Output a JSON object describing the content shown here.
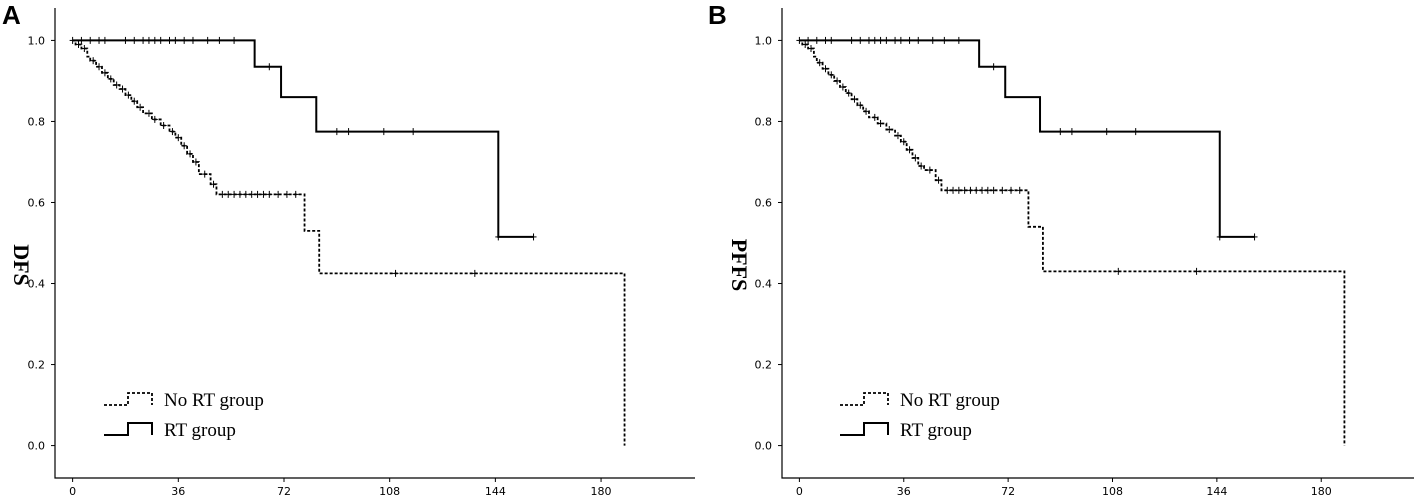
{
  "chart_data": [
    {
      "type": "line",
      "panel_label": "A",
      "ylabel": "DFS",
      "xlabel": "",
      "xlim": [
        -6,
        212
      ],
      "ylim": [
        -0.08,
        1.08
      ],
      "xticks": [
        0,
        36,
        72,
        108,
        144,
        180
      ],
      "yticks": [
        0.0,
        0.2,
        0.4,
        0.6,
        0.8,
        1.0
      ],
      "xtick_labels": [
        "0",
        "36",
        "72",
        "108",
        "144",
        "180"
      ],
      "ytick_labels": [
        "0.0",
        "0.2",
        "0.4",
        "0.6",
        "0.8",
        "1.0"
      ],
      "grid": false,
      "legend_position": "bottom-left",
      "series": [
        {
          "name": "No RT group",
          "style": "dashed",
          "steps": [
            [
              0,
              1.0
            ],
            [
              1,
              0.99
            ],
            [
              3,
              0.98
            ],
            [
              5,
              0.96
            ],
            [
              6,
              0.95
            ],
            [
              8,
              0.935
            ],
            [
              10,
              0.92
            ],
            [
              12,
              0.905
            ],
            [
              14,
              0.89
            ],
            [
              16,
              0.88
            ],
            [
              18,
              0.865
            ],
            [
              20,
              0.85
            ],
            [
              22,
              0.835
            ],
            [
              24,
              0.82
            ],
            [
              27,
              0.805
            ],
            [
              30,
              0.79
            ],
            [
              33,
              0.775
            ],
            [
              35,
              0.76
            ],
            [
              37,
              0.74
            ],
            [
              39,
              0.72
            ],
            [
              41,
              0.7
            ],
            [
              43,
              0.67
            ],
            [
              47,
              0.645
            ],
            [
              49,
              0.62
            ],
            [
              79,
              0.53
            ],
            [
              84,
              0.425
            ],
            [
              188,
              0.0
            ]
          ],
          "end_x": 188,
          "censored": [
            [
              2,
              0.99
            ],
            [
              4,
              0.98
            ],
            [
              7,
              0.95
            ],
            [
              9,
              0.935
            ],
            [
              11,
              0.92
            ],
            [
              13,
              0.905
            ],
            [
              15,
              0.89
            ],
            [
              17,
              0.88
            ],
            [
              19,
              0.865
            ],
            [
              21,
              0.85
            ],
            [
              23,
              0.835
            ],
            [
              26,
              0.82
            ],
            [
              28,
              0.805
            ],
            [
              31,
              0.79
            ],
            [
              34,
              0.775
            ],
            [
              36,
              0.76
            ],
            [
              38,
              0.74
            ],
            [
              40,
              0.72
            ],
            [
              42,
              0.7
            ],
            [
              45,
              0.67
            ],
            [
              48,
              0.645
            ],
            [
              51,
              0.62
            ],
            [
              53,
              0.62
            ],
            [
              55,
              0.62
            ],
            [
              57,
              0.62
            ],
            [
              59,
              0.62
            ],
            [
              61,
              0.62
            ],
            [
              63,
              0.62
            ],
            [
              65,
              0.62
            ],
            [
              67,
              0.62
            ],
            [
              70,
              0.62
            ],
            [
              73,
              0.62
            ],
            [
              76,
              0.62
            ],
            [
              110,
              0.425
            ],
            [
              137,
              0.425
            ]
          ]
        },
        {
          "name": "RT group",
          "style": "solid",
          "steps": [
            [
              0,
              1.0
            ],
            [
              62,
              0.935
            ],
            [
              71,
              0.86
            ],
            [
              83,
              0.775
            ],
            [
              145,
              0.515
            ]
          ],
          "end_x": 157,
          "censored": [
            [
              0,
              1.0
            ],
            [
              3,
              1.0
            ],
            [
              6,
              1.0
            ],
            [
              9,
              1.0
            ],
            [
              11,
              1.0
            ],
            [
              18,
              1.0
            ],
            [
              21,
              1.0
            ],
            [
              24,
              1.0
            ],
            [
              26,
              1.0
            ],
            [
              28,
              1.0
            ],
            [
              30,
              1.0
            ],
            [
              33,
              1.0
            ],
            [
              35,
              1.0
            ],
            [
              38,
              1.0
            ],
            [
              41,
              1.0
            ],
            [
              46,
              1.0
            ],
            [
              50,
              1.0
            ],
            [
              55,
              1.0
            ],
            [
              67,
              0.935
            ],
            [
              90,
              0.775
            ],
            [
              94,
              0.775
            ],
            [
              106,
              0.775
            ],
            [
              116,
              0.775
            ],
            [
              145,
              0.515
            ],
            [
              157,
              0.515
            ]
          ]
        }
      ]
    },
    {
      "type": "line",
      "panel_label": "B",
      "ylabel": "PFFS",
      "xlabel": "",
      "xlim": [
        -6,
        212
      ],
      "ylim": [
        -0.08,
        1.08
      ],
      "xticks": [
        0,
        36,
        72,
        108,
        144,
        180
      ],
      "yticks": [
        0.0,
        0.2,
        0.4,
        0.6,
        0.8,
        1.0
      ],
      "xtick_labels": [
        "0",
        "36",
        "72",
        "108",
        "144",
        "180"
      ],
      "ytick_labels": [
        "0.0",
        "0.2",
        "0.4",
        "0.6",
        "0.8",
        "1.0"
      ],
      "grid": false,
      "legend_position": "bottom-left",
      "series": [
        {
          "name": "No RT group",
          "style": "dashed",
          "steps": [
            [
              0,
              1.0
            ],
            [
              1,
              0.99
            ],
            [
              3,
              0.98
            ],
            [
              5,
              0.96
            ],
            [
              6,
              0.945
            ],
            [
              8,
              0.93
            ],
            [
              10,
              0.915
            ],
            [
              12,
              0.9
            ],
            [
              14,
              0.885
            ],
            [
              16,
              0.87
            ],
            [
              18,
              0.855
            ],
            [
              20,
              0.84
            ],
            [
              22,
              0.825
            ],
            [
              24,
              0.81
            ],
            [
              27,
              0.795
            ],
            [
              30,
              0.78
            ],
            [
              33,
              0.765
            ],
            [
              35,
              0.75
            ],
            [
              37,
              0.73
            ],
            [
              39,
              0.71
            ],
            [
              41,
              0.69
            ],
            [
              43,
              0.68
            ],
            [
              47,
              0.655
            ],
            [
              49,
              0.63
            ],
            [
              79,
              0.54
            ],
            [
              84,
              0.43
            ],
            [
              188,
              0.0
            ]
          ],
          "end_x": 188,
          "censored": [
            [
              2,
              0.99
            ],
            [
              4,
              0.98
            ],
            [
              7,
              0.945
            ],
            [
              9,
              0.93
            ],
            [
              11,
              0.915
            ],
            [
              13,
              0.9
            ],
            [
              15,
              0.885
            ],
            [
              17,
              0.87
            ],
            [
              19,
              0.855
            ],
            [
              21,
              0.84
            ],
            [
              23,
              0.825
            ],
            [
              26,
              0.81
            ],
            [
              28,
              0.795
            ],
            [
              31,
              0.78
            ],
            [
              34,
              0.765
            ],
            [
              36,
              0.75
            ],
            [
              38,
              0.73
            ],
            [
              40,
              0.71
            ],
            [
              42,
              0.69
            ],
            [
              45,
              0.68
            ],
            [
              48,
              0.655
            ],
            [
              51,
              0.63
            ],
            [
              53,
              0.63
            ],
            [
              55,
              0.63
            ],
            [
              57,
              0.63
            ],
            [
              59,
              0.63
            ],
            [
              61,
              0.63
            ],
            [
              63,
              0.63
            ],
            [
              65,
              0.63
            ],
            [
              67,
              0.63
            ],
            [
              70,
              0.63
            ],
            [
              73,
              0.63
            ],
            [
              76,
              0.63
            ],
            [
              110,
              0.43
            ],
            [
              137,
              0.43
            ]
          ]
        },
        {
          "name": "RT group",
          "style": "solid",
          "steps": [
            [
              0,
              1.0
            ],
            [
              62,
              0.935
            ],
            [
              71,
              0.86
            ],
            [
              83,
              0.775
            ],
            [
              145,
              0.515
            ]
          ],
          "end_x": 157,
          "censored": [
            [
              0,
              1.0
            ],
            [
              3,
              1.0
            ],
            [
              6,
              1.0
            ],
            [
              9,
              1.0
            ],
            [
              11,
              1.0
            ],
            [
              18,
              1.0
            ],
            [
              21,
              1.0
            ],
            [
              24,
              1.0
            ],
            [
              26,
              1.0
            ],
            [
              28,
              1.0
            ],
            [
              30,
              1.0
            ],
            [
              33,
              1.0
            ],
            [
              35,
              1.0
            ],
            [
              38,
              1.0
            ],
            [
              41,
              1.0
            ],
            [
              46,
              1.0
            ],
            [
              50,
              1.0
            ],
            [
              55,
              1.0
            ],
            [
              67,
              0.935
            ],
            [
              90,
              0.775
            ],
            [
              94,
              0.775
            ],
            [
              106,
              0.775
            ],
            [
              116,
              0.775
            ],
            [
              145,
              0.515
            ],
            [
              157,
              0.515
            ]
          ]
        }
      ]
    }
  ]
}
